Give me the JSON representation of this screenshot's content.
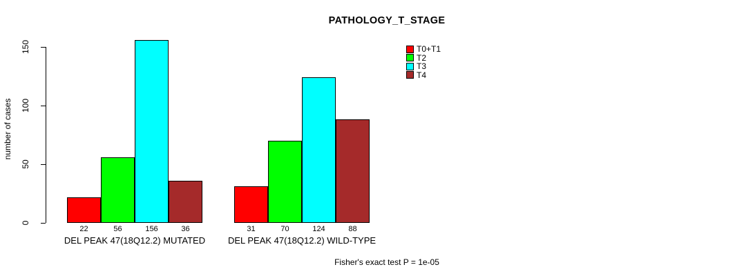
{
  "chart_data": {
    "type": "bar",
    "title": "PATHOLOGY_T_STAGE",
    "ylabel": "number of cases",
    "ylim": [
      0,
      160
    ],
    "yticks": [
      0,
      50,
      100,
      150
    ],
    "grid": false,
    "legend_position": "top-right",
    "legend": [
      {
        "label": "T0+T1",
        "color": "#FF0000"
      },
      {
        "label": "T2",
        "color": "#00FF00"
      },
      {
        "label": "T3",
        "color": "#00FFFF"
      },
      {
        "label": "T4",
        "color": "#A52A2A"
      }
    ],
    "categories": [
      "T0+T1",
      "T2",
      "T3",
      "T4"
    ],
    "groups": [
      {
        "label": "DEL PEAK 47(18Q12.2) MUTATED",
        "values": [
          22,
          56,
          156,
          36
        ]
      },
      {
        "label": "DEL PEAK 47(18Q12.2) WILD-TYPE",
        "values": [
          31,
          70,
          124,
          88
        ]
      }
    ],
    "footnote": "Fisher's exact test P = 1e-05"
  }
}
